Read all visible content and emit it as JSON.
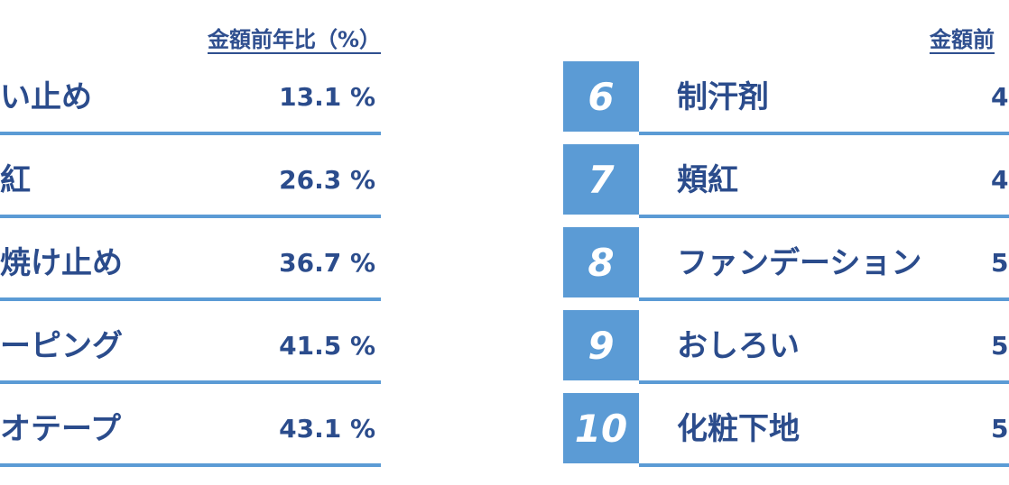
{
  "left": {
    "header": "金額前年比（%）",
    "rows": [
      {
        "name": "い止め",
        "value": "13.1 %"
      },
      {
        "name": "紅",
        "value": "26.3 %"
      },
      {
        "name": "焼け止め",
        "value": "36.7 %"
      },
      {
        "name": "ーピング",
        "value": "41.5 %"
      },
      {
        "name": "オテープ",
        "value": "43.1 %"
      }
    ]
  },
  "right": {
    "header": "金額前",
    "rows": [
      {
        "rank": "6",
        "name": "制汗剤",
        "value": "4"
      },
      {
        "rank": "7",
        "name": "頬紅",
        "value": "4"
      },
      {
        "rank": "8",
        "name": "ファンデーション",
        "value": "5"
      },
      {
        "rank": "9",
        "name": "おしろい",
        "value": "5"
      },
      {
        "rank": "10",
        "name": "化粧下地",
        "value": "5"
      }
    ]
  }
}
